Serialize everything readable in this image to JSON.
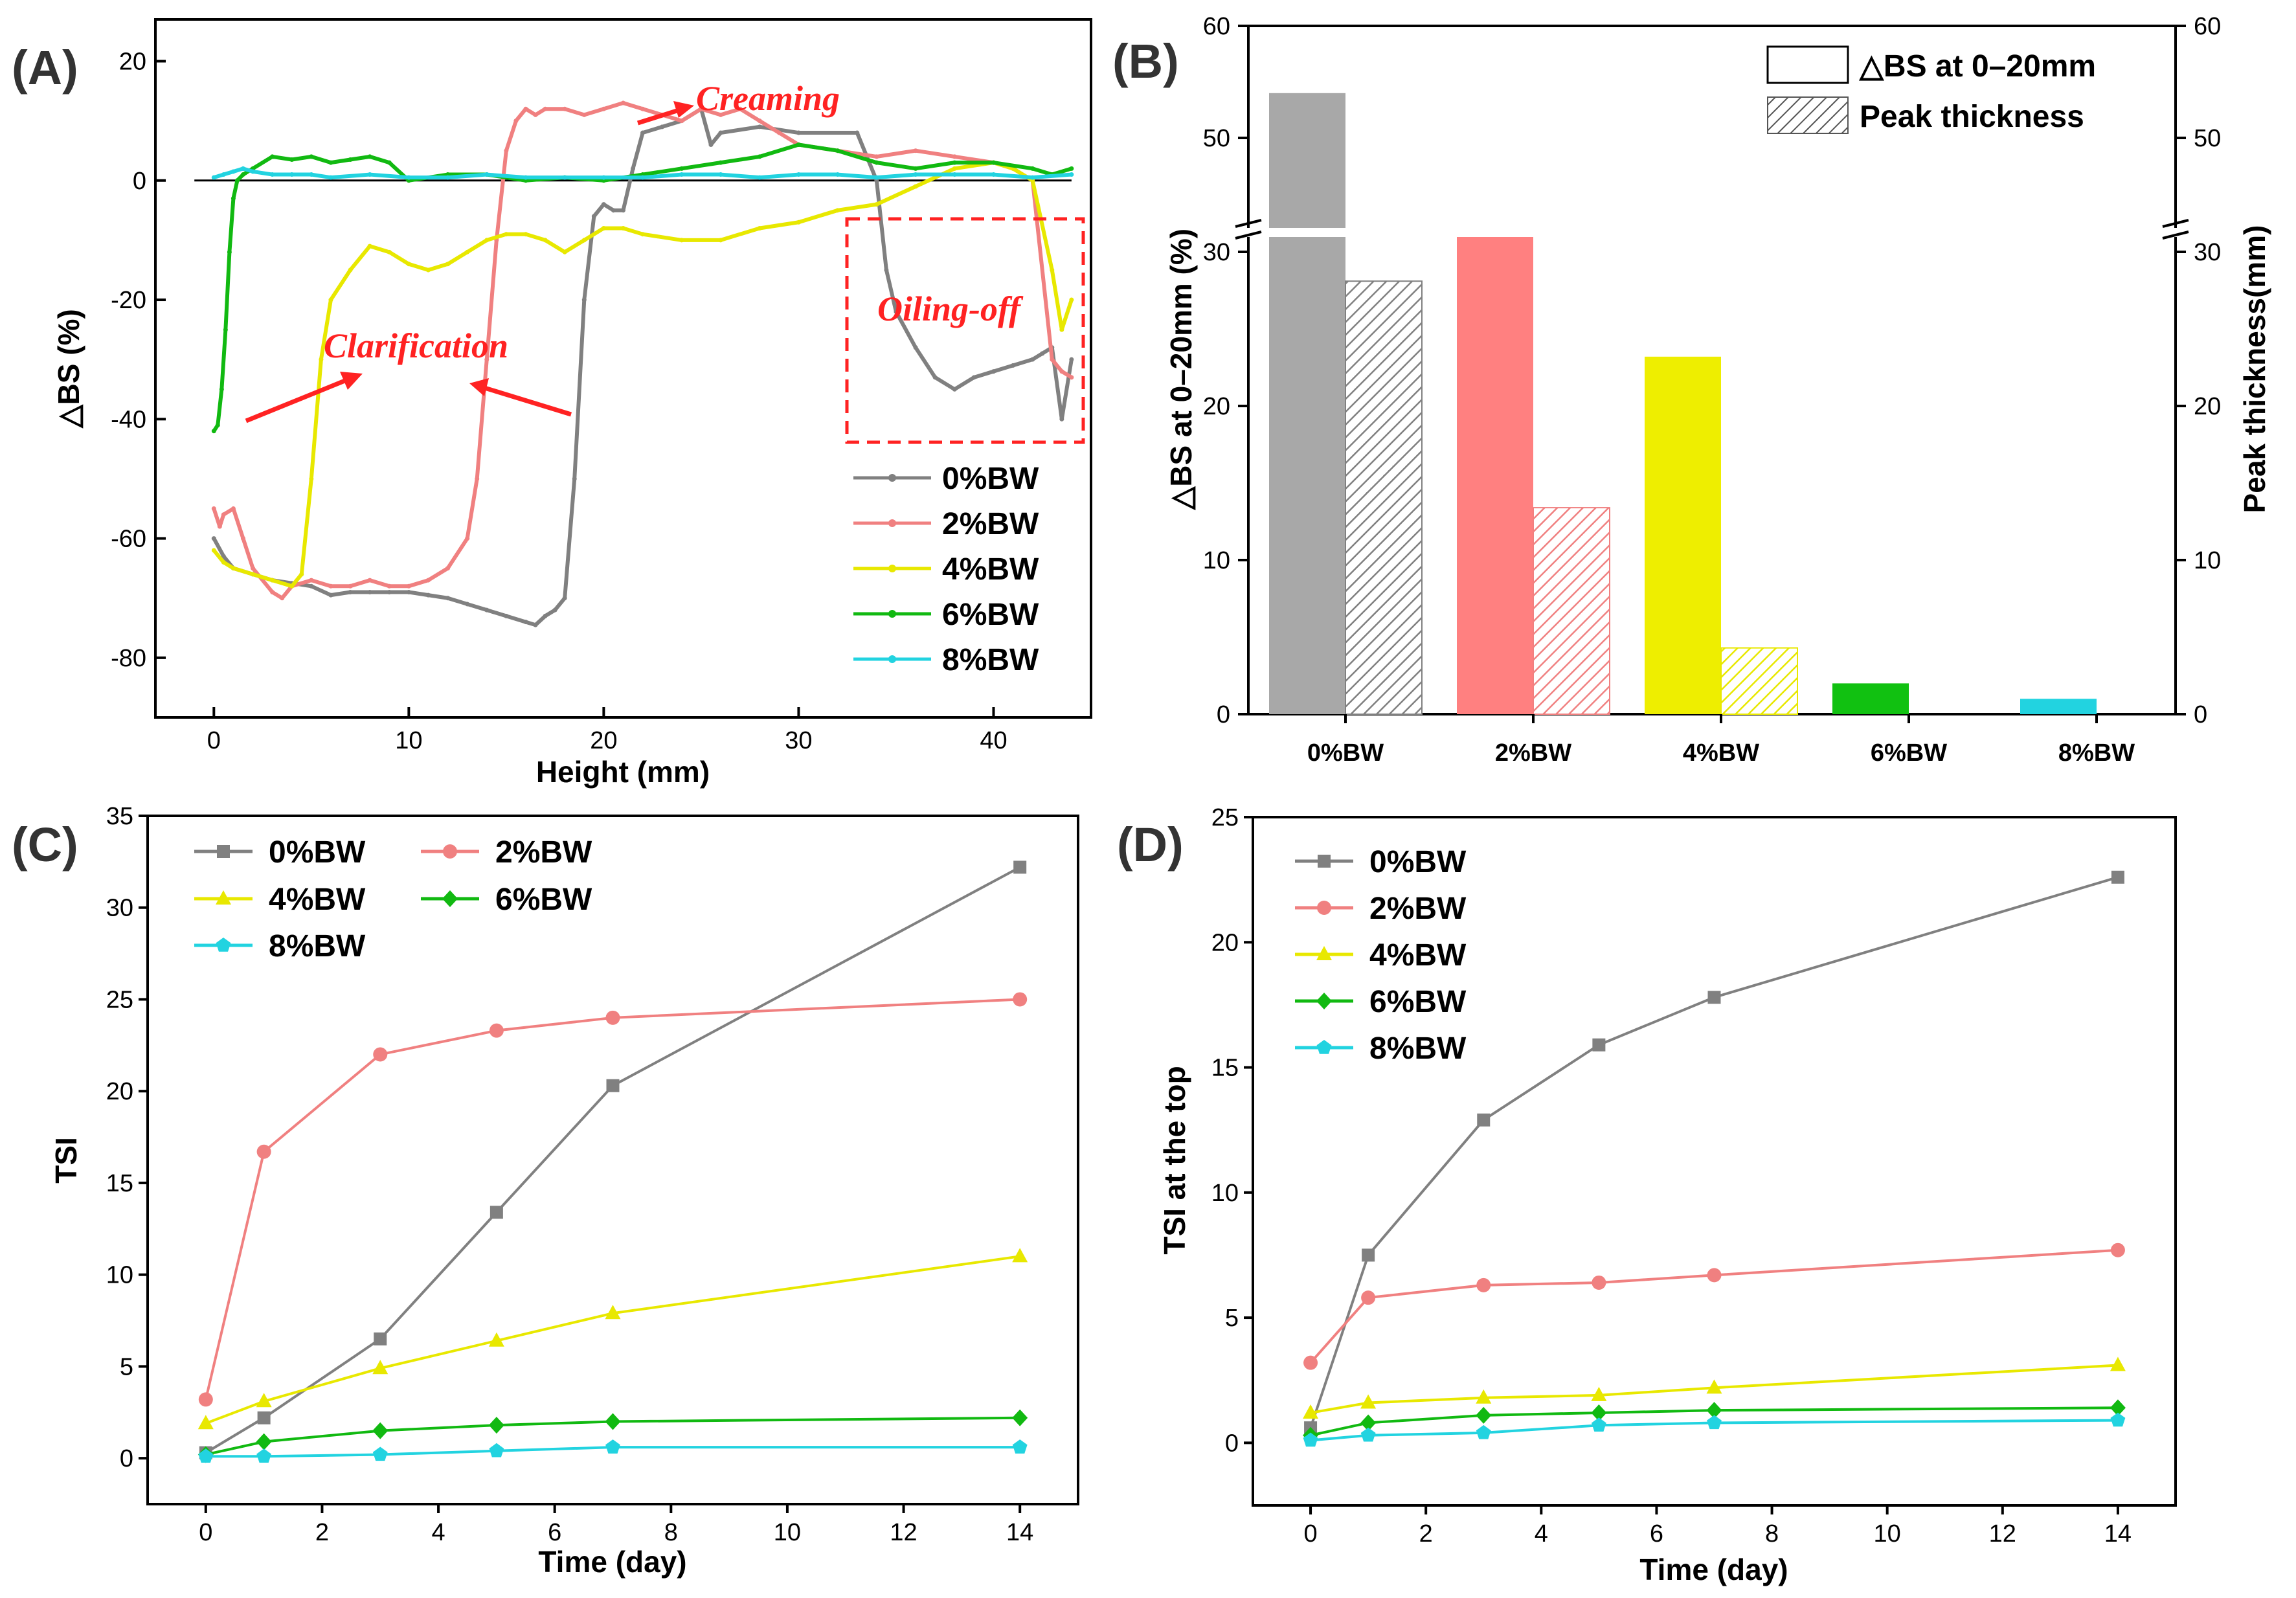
{
  "colors": {
    "0%BW": "#808080",
    "2%BW": "#f08080",
    "4%BW": "#e8e800",
    "6%BW": "#11b911",
    "8%BW": "#22d3e0",
    "annotation": "#ff2222",
    "axis": "#000000"
  },
  "chart_data": [
    {
      "panel": "(A)",
      "type": "line",
      "xlabel": "Height (mm)",
      "ylabel": "△BS (%)",
      "xlim": [
        -3,
        45
      ],
      "ylim": [
        -90,
        27
      ],
      "xticks": [
        "0",
        "10",
        "20",
        "30",
        "40"
      ],
      "yticks": [
        "20",
        "0",
        "-20",
        "-40",
        "-60",
        "-80"
      ],
      "annotations": [
        "Creaming",
        "Clarification",
        "Oiling-off"
      ],
      "series": [
        {
          "name": "0%BW",
          "x": [
            0,
            0.5,
            1,
            2,
            3,
            4,
            5,
            6,
            7,
            8,
            9,
            10,
            11,
            12,
            13,
            14,
            15,
            16,
            16.5,
            17,
            17.5,
            18,
            18.5,
            19,
            19.5,
            20,
            20.5,
            21,
            21.5,
            22,
            23,
            24,
            25,
            25.5,
            26,
            28,
            30,
            33,
            34,
            34.5,
            35,
            36,
            37,
            38,
            39,
            40,
            41,
            42,
            42.5,
            43,
            43.5,
            44
          ],
          "y": [
            -60,
            -63,
            -65,
            -66,
            -67,
            -67.5,
            -68,
            -69.5,
            -69,
            -69,
            -69,
            -69,
            -69.5,
            -70,
            -71,
            -72,
            -73,
            -74,
            -74.5,
            -73,
            -72,
            -70,
            -50,
            -20,
            -6,
            -4,
            -5,
            -5,
            2,
            8,
            9,
            10,
            12,
            6,
            8,
            9,
            8,
            8,
            0,
            -15,
            -22,
            -28,
            -33,
            -35,
            -33,
            -32,
            -31,
            -30,
            -29,
            -28,
            -40,
            -30
          ]
        },
        {
          "name": "2%BW",
          "x": [
            0,
            0.3,
            0.5,
            1,
            1.5,
            2,
            3,
            3.5,
            4,
            5,
            6,
            7,
            8,
            9,
            10,
            11,
            12,
            13,
            13.5,
            14,
            14.5,
            15,
            15.5,
            16,
            16.5,
            17,
            18,
            19,
            20,
            21,
            22,
            23,
            24,
            25,
            26,
            27,
            28,
            29,
            30,
            32,
            34,
            36,
            38,
            40,
            41,
            42,
            43,
            43.5,
            44
          ],
          "y": [
            -55,
            -58,
            -56,
            -55,
            -60,
            -65,
            -69,
            -70,
            -68,
            -67,
            -68,
            -68,
            -67,
            -68,
            -68,
            -67,
            -65,
            -60,
            -50,
            -30,
            -10,
            5,
            10,
            12,
            11,
            12,
            12,
            11,
            12,
            13,
            12,
            11,
            10,
            12,
            11,
            12,
            10,
            8,
            6,
            5,
            4,
            5,
            4,
            3,
            2,
            0,
            -30,
            -32,
            -33
          ]
        },
        {
          "name": "4%BW",
          "x": [
            0,
            0.5,
            1,
            2,
            3,
            4,
            4.5,
            5,
            5.5,
            6,
            7,
            8,
            9,
            10,
            11,
            12,
            13,
            14,
            15,
            16,
            17,
            18,
            19,
            20,
            21,
            22,
            24,
            26,
            28,
            30,
            32,
            34,
            36,
            38,
            40,
            41,
            42,
            43,
            43.5,
            44
          ],
          "y": [
            -62,
            -64,
            -65,
            -66,
            -67,
            -68,
            -66,
            -50,
            -30,
            -20,
            -15,
            -11,
            -12,
            -14,
            -15,
            -14,
            -12,
            -10,
            -9,
            -9,
            -10,
            -12,
            -10,
            -8,
            -8,
            -9,
            -10,
            -10,
            -8,
            -7,
            -5,
            -4,
            -1,
            2,
            3,
            2,
            0,
            -15,
            -25,
            -20
          ]
        },
        {
          "name": "6%BW",
          "x": [
            0,
            0.2,
            0.4,
            0.6,
            0.8,
            1,
            1.2,
            1.5,
            2,
            3,
            4,
            5,
            6,
            7,
            8,
            9,
            10,
            12,
            14,
            16,
            18,
            20,
            22,
            24,
            26,
            28,
            30,
            32,
            34,
            36,
            38,
            40,
            42,
            43,
            44
          ],
          "y": [
            -42,
            -41,
            -35,
            -25,
            -12,
            -3,
            0,
            1,
            2,
            4,
            3.5,
            4,
            3,
            3.5,
            4,
            3,
            0,
            1,
            1,
            0,
            0.5,
            0,
            1,
            2,
            3,
            4,
            6,
            5,
            3,
            2,
            3,
            3,
            2,
            1,
            2
          ]
        },
        {
          "name": "8%BW",
          "x": [
            0,
            0.5,
            1,
            1.5,
            2,
            3,
            4,
            5,
            6,
            8,
            10,
            12,
            14,
            16,
            18,
            20,
            22,
            24,
            26,
            28,
            30,
            32,
            34,
            36,
            38,
            40,
            42,
            44
          ],
          "y": [
            0.5,
            1,
            1.5,
            2,
            1.5,
            1,
            1,
            1,
            0.5,
            1,
            0.5,
            0.5,
            1,
            0.5,
            0.5,
            0.5,
            0.5,
            1,
            1,
            0.5,
            1,
            1,
            0.5,
            1,
            1,
            1,
            0.5,
            1
          ]
        }
      ]
    },
    {
      "panel": "(B)",
      "type": "bar",
      "categories": [
        "0%BW",
        "2%BW",
        "4%BW",
        "6%BW",
        "8%BW"
      ],
      "ylabel_left": "△BS at 0–20mm (%)",
      "ylabel_right": "Peak thickness(mm)",
      "ylim": [
        0,
        60
      ],
      "broken_axis": [
        31,
        45
      ],
      "yticks_lower": [
        "0",
        "10",
        "20",
        "30"
      ],
      "yticks_upper": [
        "50",
        "60"
      ],
      "legend": [
        "△BS at 0–20mm",
        "Peak thickness"
      ],
      "series": [
        {
          "name": "△BS at 0–20mm",
          "values": [
            54,
            31,
            23.2,
            2,
            1
          ]
        },
        {
          "name": "Peak thickness",
          "values": [
            28.1,
            13.4,
            4.3,
            0,
            0
          ]
        }
      ]
    },
    {
      "panel": "(C)",
      "type": "line",
      "xlabel": "Time (day)",
      "ylabel": "TSI",
      "xlim": [
        -1,
        15
      ],
      "ylim": [
        -2.5,
        35
      ],
      "xticks": [
        "0",
        "2",
        "4",
        "6",
        "8",
        "10",
        "12",
        "14"
      ],
      "yticks": [
        "0",
        "5",
        "10",
        "15",
        "20",
        "25",
        "30",
        "35"
      ],
      "x": [
        0,
        1,
        3,
        5,
        7,
        14
      ],
      "series": [
        {
          "name": "0%BW",
          "values": [
            0.3,
            2.2,
            6.5,
            13.4,
            20.3,
            32.2
          ]
        },
        {
          "name": "2%BW",
          "values": [
            3.2,
            16.7,
            22,
            23.3,
            24,
            25
          ]
        },
        {
          "name": "4%BW",
          "values": [
            1.9,
            3.1,
            4.9,
            6.4,
            7.9,
            11
          ]
        },
        {
          "name": "6%BW",
          "values": [
            0.2,
            0.9,
            1.5,
            1.8,
            2,
            2.2
          ]
        },
        {
          "name": "8%BW",
          "values": [
            0.1,
            0.1,
            0.2,
            0.4,
            0.6,
            0.6
          ]
        }
      ]
    },
    {
      "panel": "(D)",
      "type": "line",
      "xlabel": "Time (day)",
      "ylabel": "TSI at the top",
      "xlim": [
        -1,
        15
      ],
      "ylim": [
        -2.5,
        25
      ],
      "xticks": [
        "0",
        "2",
        "4",
        "6",
        "8",
        "10",
        "12",
        "14"
      ],
      "yticks": [
        "0",
        "5",
        "10",
        "15",
        "20",
        "25"
      ],
      "x": [
        0,
        1,
        3,
        5,
        7,
        14
      ],
      "series": [
        {
          "name": "0%BW",
          "values": [
            0.6,
            7.5,
            12.9,
            15.9,
            17.8,
            22.6
          ]
        },
        {
          "name": "2%BW",
          "values": [
            3.2,
            5.8,
            6.3,
            6.4,
            6.7,
            7.7
          ]
        },
        {
          "name": "4%BW",
          "values": [
            1.2,
            1.6,
            1.8,
            1.9,
            2.2,
            3.1
          ]
        },
        {
          "name": "6%BW",
          "values": [
            0.3,
            0.8,
            1.1,
            1.2,
            1.3,
            1.4
          ]
        },
        {
          "name": "8%BW",
          "values": [
            0.1,
            0.3,
            0.4,
            0.7,
            0.8,
            0.9
          ]
        }
      ]
    }
  ]
}
